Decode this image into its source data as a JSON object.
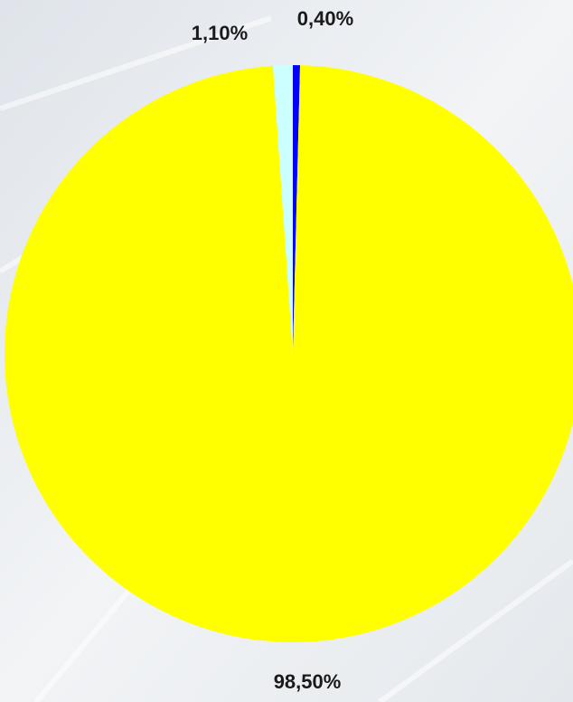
{
  "chart_data": {
    "type": "pie",
    "values": [
      0.4,
      98.5,
      1.1
    ],
    "value_labels": [
      "0,40%",
      "98,50%",
      "1,10%"
    ],
    "colors": [
      "#0000ff",
      "#ffff00",
      "#ccffff"
    ]
  }
}
